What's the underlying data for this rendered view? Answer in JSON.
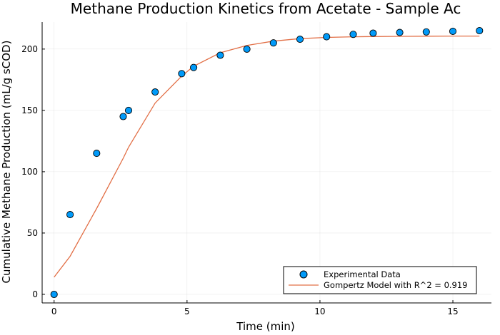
{
  "chart_data": {
    "type": "scatter",
    "title": "Methane Production Kinetics from Acetate - Sample Ac",
    "xlabel": "Time (min)",
    "ylabel": "Cumulative Methane Production (mL/g sCOD)",
    "xlim": [
      -0.45,
      16.45
    ],
    "ylim": [
      -7,
      222
    ],
    "xticks": [
      0,
      5,
      10,
      15
    ],
    "yticks": [
      0,
      50,
      100,
      150,
      200
    ],
    "grid": true,
    "legend_position": "bottom-right",
    "series": [
      {
        "name": "Experimental Data",
        "kind": "scatter",
        "color": "#009af9",
        "x": [
          0,
          0.6,
          1.6,
          2.6,
          2.8,
          3.8,
          4.8,
          5.25,
          6.25,
          7.25,
          8.25,
          9.25,
          10.25,
          11.25,
          12.0,
          13.0,
          14.0,
          15.0,
          16.0
        ],
        "y": [
          0,
          65,
          115,
          145,
          150,
          165,
          180,
          185,
          195,
          200,
          205,
          208,
          210,
          212,
          213,
          213.5,
          214,
          214.5,
          215
        ]
      },
      {
        "name": "Gompertz Model with R^2 = 0.919",
        "kind": "line",
        "color": "#e26f46",
        "x": [
          0,
          0.6,
          1.6,
          2.6,
          2.8,
          3.8,
          4.8,
          5.25,
          6.25,
          7.25,
          8.25,
          9.25,
          10.25,
          11.25,
          12.0,
          13.0,
          14.0,
          15.0,
          16.0
        ],
        "y": [
          14,
          31,
          70,
          111,
          120,
          156,
          178,
          186,
          197,
          203,
          206.5,
          208.5,
          209.5,
          210,
          210.2,
          210.4,
          210.5,
          210.6,
          210.6
        ]
      }
    ]
  }
}
